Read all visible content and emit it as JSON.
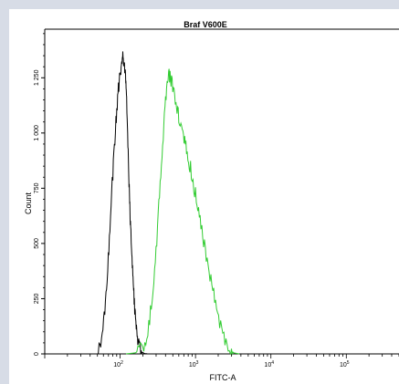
{
  "chart_data": {
    "type": "histogram",
    "title": "Braf V600E",
    "xlabel": "FITC-A",
    "ylabel": "Count",
    "x_scale": "log",
    "xlim": [
      10,
      500000
    ],
    "ylim": [
      0,
      1470
    ],
    "y_ticks": [
      0,
      250,
      500,
      750,
      1000,
      1250
    ],
    "y_tick_labels": [
      "0",
      "250",
      "500",
      "750",
      "1 000",
      "1 250"
    ],
    "x_ticks": [
      100,
      1000,
      10000,
      100000
    ],
    "x_tick_labels": [
      "10",
      "10",
      "10",
      "10"
    ],
    "x_tick_exponents": [
      "2",
      "3",
      "4",
      "5"
    ],
    "grid": false,
    "legend": "none",
    "series": [
      {
        "color": "#000000",
        "x": [
          50,
          58,
          65,
          72,
          80,
          88,
          95,
          102,
          108,
          112,
          118,
          122,
          128,
          133,
          138,
          145,
          152,
          160,
          170,
          180,
          195,
          210,
          230,
          260,
          300
        ],
        "y": [
          0,
          80,
          260,
          520,
          820,
          1050,
          1200,
          1290,
          1340,
          1320,
          1270,
          1150,
          900,
          720,
          560,
          400,
          260,
          150,
          70,
          25,
          8,
          2,
          0,
          0,
          0
        ]
      },
      {
        "color": "#33cc33",
        "x": [
          120,
          160,
          200,
          240,
          280,
          320,
          360,
          400,
          440,
          480,
          540,
          600,
          680,
          760,
          860,
          1000,
          1150,
          1350,
          1600,
          1900,
          2300,
          2800,
          3200,
          3800
        ],
        "y": [
          0,
          5,
          30,
          120,
          320,
          620,
          900,
          1140,
          1270,
          1230,
          1150,
          1080,
          990,
          920,
          840,
          720,
          600,
          460,
          330,
          200,
          90,
          25,
          5,
          0
        ]
      }
    ]
  }
}
